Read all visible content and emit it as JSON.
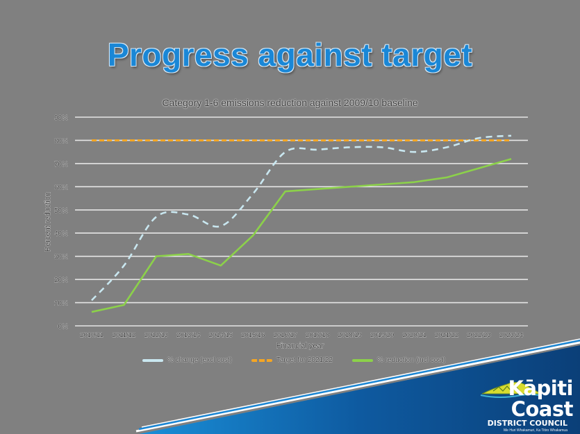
{
  "slide": {
    "title": "Progress against target",
    "title_color": "#1a87d6",
    "background_color": "#808080"
  },
  "logo": {
    "name": "Kāpiti Coast",
    "subtitle": "DISTRICT COUNCIL",
    "tagline": "Me Huri Whakamuri, Ka Titiro Whakamua",
    "band_color": "#0e4e8a",
    "accent_color": "#1a87d6"
  },
  "chart_data": {
    "type": "line",
    "title": "Category 1-6 emissions reduction against 2009/10 baseline",
    "xlabel": "Financial year",
    "ylabel": "Percent reduction",
    "ylim": [
      0,
      90
    ],
    "y_ticks": [
      "0%",
      "10%",
      "20%",
      "30%",
      "40%",
      "50%",
      "60%",
      "70%",
      "80%",
      "90%"
    ],
    "grid": true,
    "legend_position": "bottom",
    "categories": [
      "2010/11",
      "2011/12",
      "2012/13",
      "2013/14",
      "2014/15",
      "2015/16",
      "2016/17",
      "2017/18",
      "2018/19",
      "2019/20",
      "2020/21",
      "2021/22",
      "2022/23",
      "2023/24"
    ],
    "series": [
      {
        "name": "% change (excl cost)",
        "style": "dashed",
        "color": "#c9e7f0",
        "values": [
          11,
          26,
          47,
          48,
          43,
          57,
          75,
          76,
          77,
          77,
          75,
          77,
          81,
          82
        ]
      },
      {
        "name": "Target for 2021/22",
        "style": "dashed",
        "color": "#f5a623",
        "values": [
          80,
          80,
          80,
          80,
          80,
          80,
          80,
          80,
          80,
          80,
          80,
          80,
          80,
          80
        ]
      },
      {
        "name": "% reduction (incl cost)",
        "style": "solid",
        "color": "#8cd14a",
        "values": [
          6,
          9,
          30,
          31,
          26,
          39,
          58,
          59,
          60,
          61,
          62,
          64,
          68,
          72
        ]
      }
    ]
  }
}
